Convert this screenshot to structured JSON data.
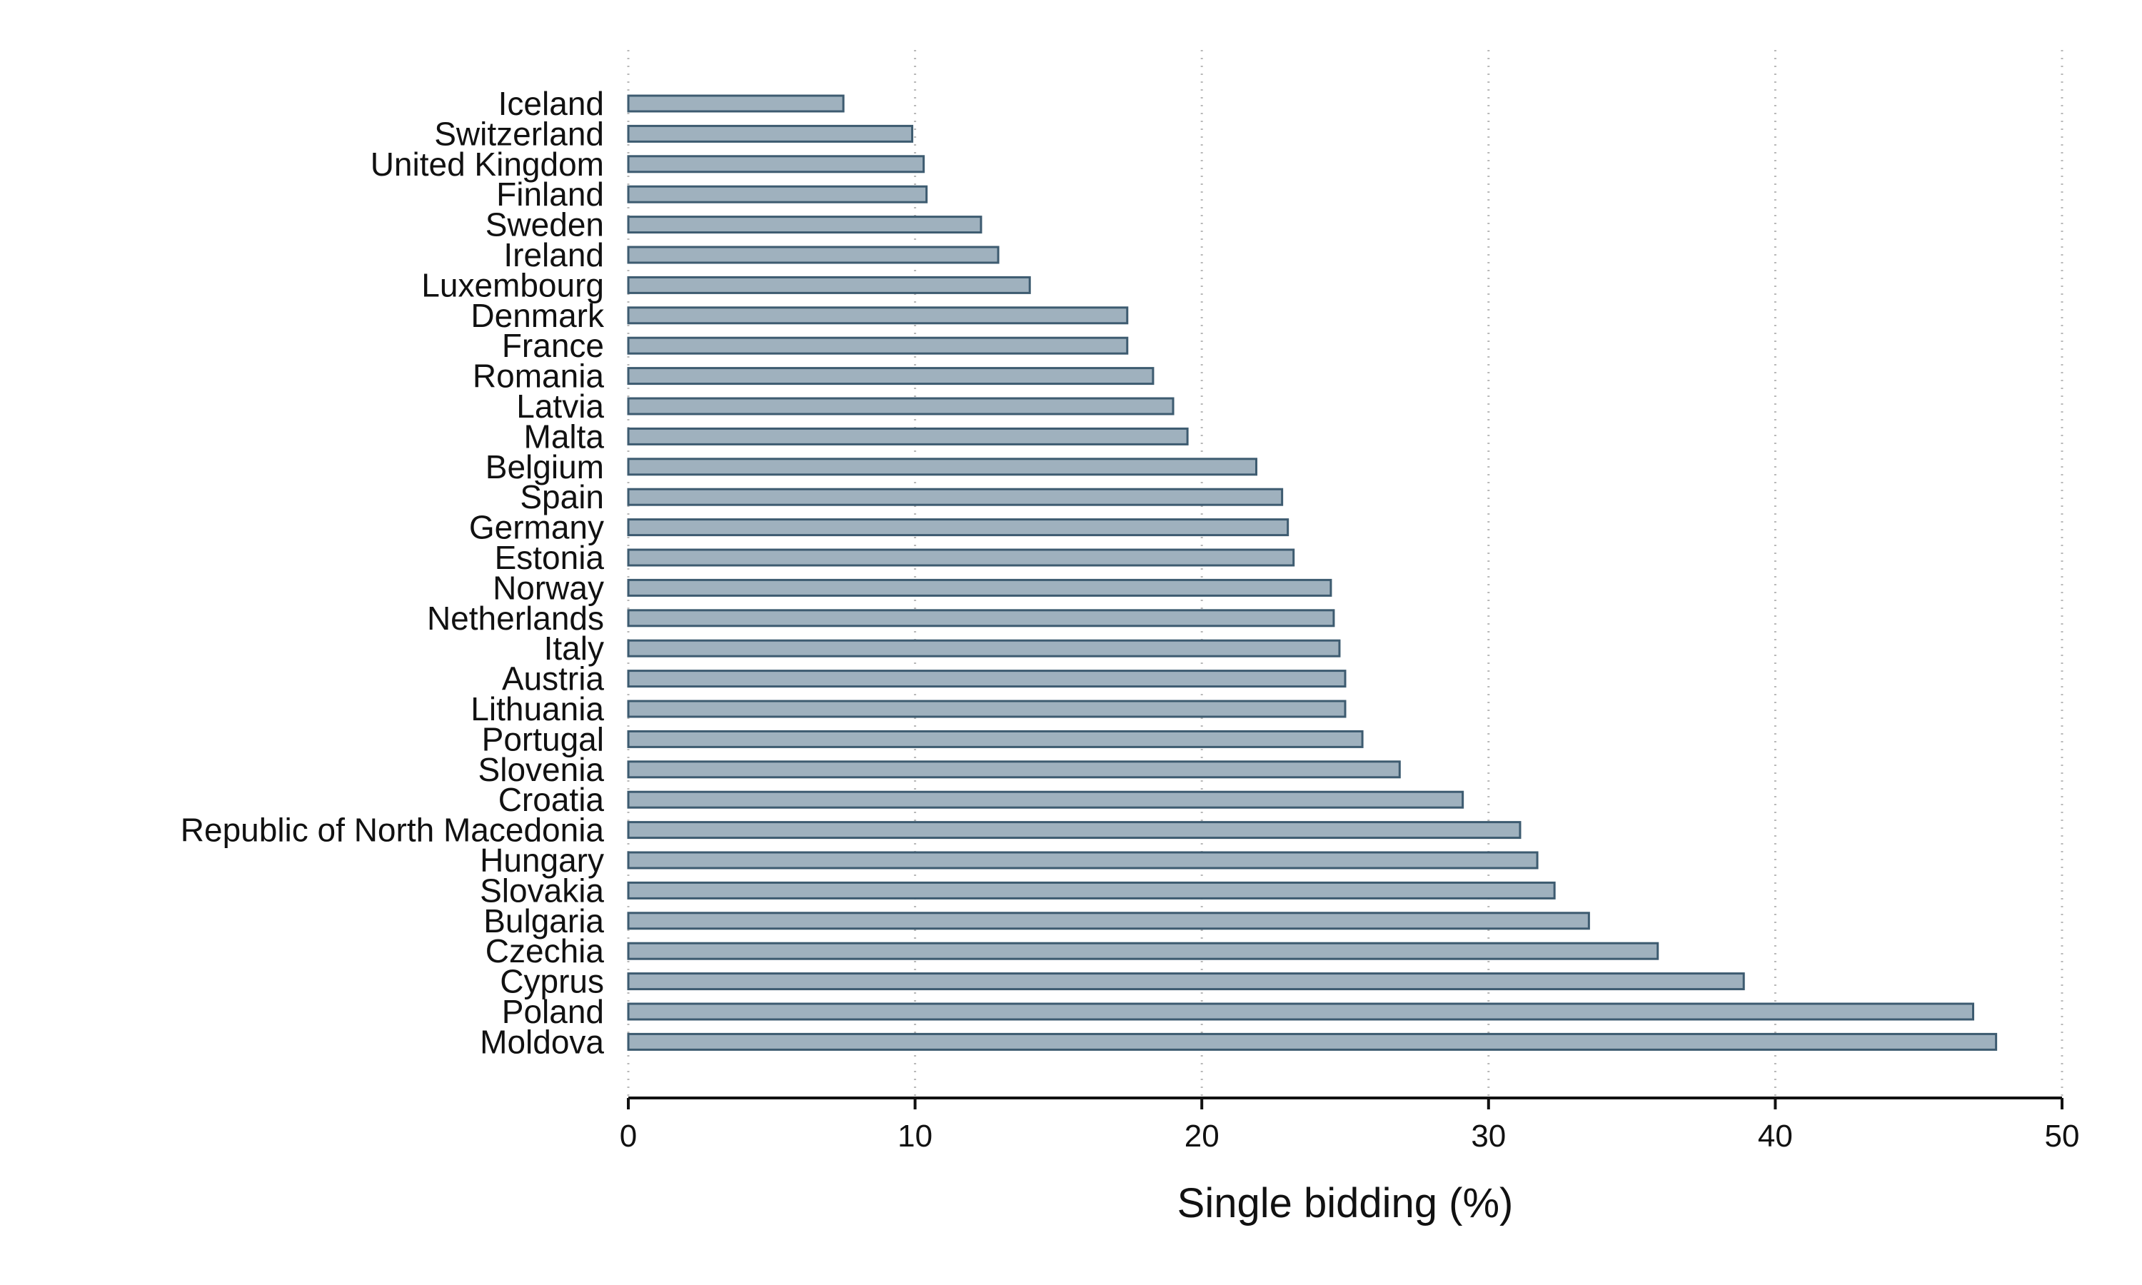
{
  "chart_data": {
    "type": "bar",
    "orientation": "horizontal",
    "xlabel": "Single bidding (%)",
    "ylabel": "",
    "xlim": [
      0,
      50
    ],
    "xticks": [
      0,
      10,
      20,
      30,
      40,
      50
    ],
    "grid": "vertical dotted",
    "legend": "none",
    "colors": {
      "bar_fill": "#9fb1be",
      "bar_edge": "#3d5b70"
    },
    "categories": [
      "Iceland",
      "Switzerland",
      "United Kingdom",
      "Finland",
      "Sweden",
      "Ireland",
      "Luxembourg",
      "Denmark",
      "France",
      "Romania",
      "Latvia",
      "Malta",
      "Belgium",
      "Spain",
      "Germany",
      "Estonia",
      "Norway",
      "Netherlands",
      "Italy",
      "Austria",
      "Lithuania",
      "Portugal",
      "Slovenia",
      "Croatia",
      "Republic of North Macedonia",
      "Hungary",
      "Slovakia",
      "Bulgaria",
      "Czechia",
      "Cyprus",
      "Poland",
      "Moldova"
    ],
    "values": [
      7.5,
      9.9,
      10.3,
      10.4,
      12.3,
      12.9,
      14.0,
      17.4,
      17.4,
      18.3,
      19.0,
      19.5,
      21.9,
      22.8,
      23.0,
      23.2,
      24.5,
      24.6,
      24.8,
      25.0,
      25.0,
      25.6,
      26.9,
      29.1,
      31.1,
      31.7,
      32.3,
      33.5,
      35.9,
      38.9,
      46.9,
      47.7
    ]
  }
}
